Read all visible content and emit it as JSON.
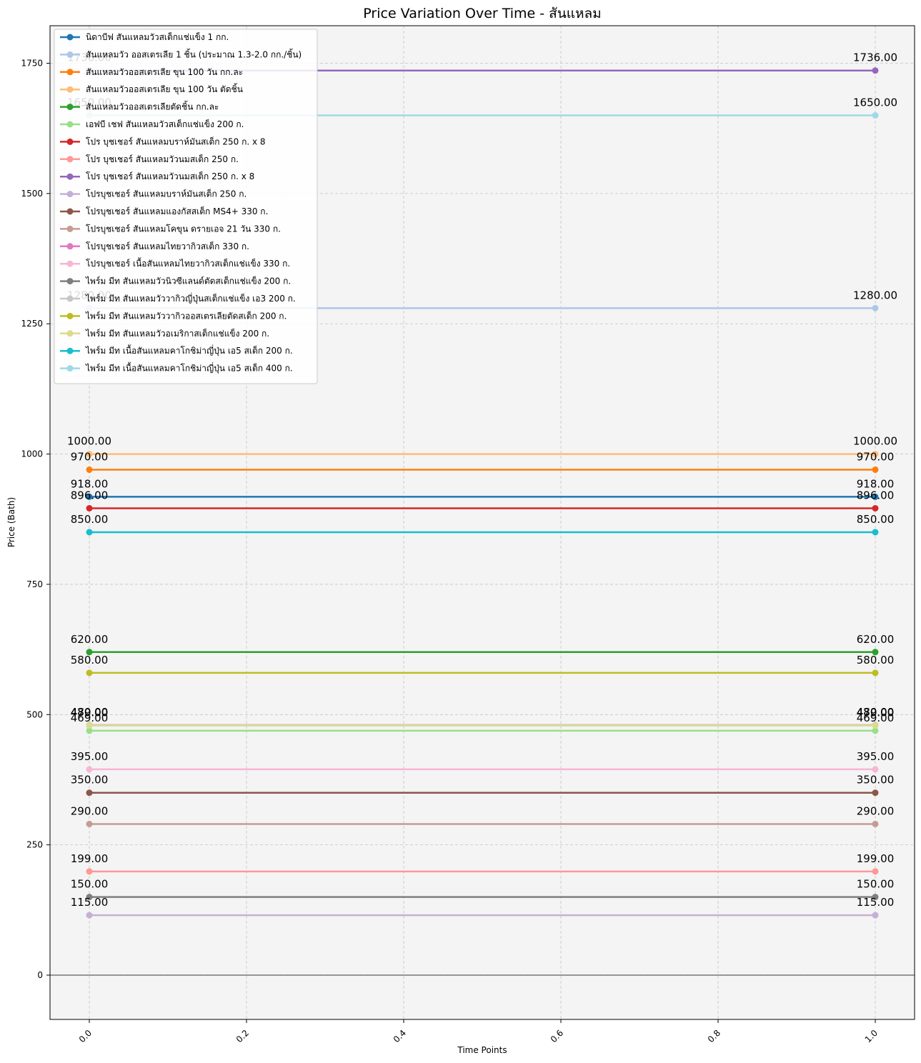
{
  "chart_data": {
    "type": "line",
    "title": "Price Variation Over Time - สันแหลม",
    "xlabel": "Time Points",
    "ylabel": "Price (Bath)",
    "x": [
      0.0,
      1.0
    ],
    "xlim": [
      -0.05,
      1.05
    ],
    "ylim": [
      -85,
      1822
    ],
    "xticks": [
      0.0,
      0.2,
      0.4,
      0.6,
      0.8,
      1.0
    ],
    "xtick_labels": [
      "0.0",
      "0.2",
      "0.4",
      "0.6",
      "0.8",
      "1.0"
    ],
    "yticks": [
      0,
      250,
      500,
      750,
      1000,
      1250,
      1500,
      1750
    ],
    "ytick_labels": [
      "0",
      "250",
      "500",
      "750",
      "1000",
      "1250",
      "1500",
      "1750"
    ],
    "grid": true,
    "legend_position": "top-left",
    "series": [
      {
        "name": "นิดาบีฟ สันแหลมวัวสเต็กแช่แข็ง 1 กก.",
        "color": "#1f77b4",
        "values": [
          918,
          918
        ],
        "labels": [
          "918.00",
          "918.00"
        ]
      },
      {
        "name": "สันแหลมวัว ออสเตรเลีย 1 ชิ้น (ประมาณ 1.3-2.0 กก./ชิ้น)",
        "color": "#aec7e8",
        "values": [
          1280,
          1280
        ],
        "labels": [
          "1280.00",
          "1280.00"
        ]
      },
      {
        "name": "สันแหลมวัวออสเตรเลีย ขุน 100 วัน กก.ละ",
        "color": "#ff7f0e",
        "values": [
          970,
          970
        ],
        "labels": [
          "970.00",
          "970.00"
        ]
      },
      {
        "name": "สันแหลมวัวออสเตรเลีย ขุน 100 วัน ตัดชิ้น",
        "color": "#ffbb78",
        "values": [
          1000,
          1000
        ],
        "labels": [
          "1000.00",
          "1000.00"
        ]
      },
      {
        "name": "สันแหลมวัวออสเตรเลียตัดชิ้น กก.ละ",
        "color": "#2ca02c",
        "values": [
          620,
          620
        ],
        "labels": [
          "620.00",
          "620.00"
        ]
      },
      {
        "name": "เอฟบี เชฟ สันแหลมวัวสเต็กแช่แข็ง 200 ก.",
        "color": "#98df8a",
        "values": [
          469,
          469
        ],
        "labels": [
          "469.00",
          "469.00"
        ]
      },
      {
        "name": "โปร บุชเชอร์ สันแหลมบราห์มันสเต็ก 250 ก. x 8",
        "color": "#d62728",
        "values": [
          896,
          896
        ],
        "labels": [
          "896.00",
          "896.00"
        ]
      },
      {
        "name": "โปร บุชเชอร์ สันแหลมวัวนมสเต็ก 250 ก.",
        "color": "#ff9896",
        "values": [
          199,
          199
        ],
        "labels": [
          "199.00",
          "199.00"
        ]
      },
      {
        "name": "โปร บุชเชอร์ สันแหลมวัวนมสเต็ก 250 ก. x 8",
        "color": "#9467bd",
        "values": [
          1736,
          1736
        ],
        "labels": [
          "1736.00",
          "1736.00"
        ]
      },
      {
        "name": "โปรบุชเชอร์ สันแหลมบราห์มันสเต็ก 250 ก.",
        "color": "#c5b0d5",
        "values": [
          115,
          115
        ],
        "labels": [
          "115.00",
          "115.00"
        ]
      },
      {
        "name": "โปรบุชเชอร์ สันแหลมแองกัสสเต็ก MS4+ 330 ก.",
        "color": "#8c564b",
        "values": [
          350,
          350
        ],
        "labels": [
          "350.00",
          "350.00"
        ]
      },
      {
        "name": "โปรบุชเชอร์ สันแหลมโคขุน ดรายเอจ 21 วัน 330 ก.",
        "color": "#c49c94",
        "values": [
          290,
          290
        ],
        "labels": [
          "290.00",
          "290.00"
        ]
      },
      {
        "name": "โปรบุชเชอร์ สันแหลมไทยวากิวสเต็ก 330 ก.",
        "color": "#e377c2",
        "values": [
          480,
          480
        ],
        "labels": [
          "480.00",
          "480.00"
        ]
      },
      {
        "name": "โปรบุชเชอร์ เนื้อสันแหลมไทยวากิวสเต็กแช่แข็ง 330 ก.",
        "color": "#f7b6d2",
        "values": [
          395,
          395
        ],
        "labels": [
          "395.00",
          "395.00"
        ]
      },
      {
        "name": "ไพร์ม มีท สันแหลมวัวนิวซีแลนด์ตัดสเต็กแช่แข็ง 200 ก.",
        "color": "#7f7f7f",
        "values": [
          150,
          150
        ],
        "labels": [
          "150.00",
          "150.00"
        ]
      },
      {
        "name": "ไพร์ม มีท สันแหลมวัววากิวญี่ปุ่นสเต็กแช่แข็ง เอ3 200 ก.",
        "color": "#c7c7c7",
        "values": [
          480,
          480
        ],
        "labels": [
          "480.00",
          "480.00"
        ]
      },
      {
        "name": "ไพร์ม มีท สันแหลมวัววากิวออสเตรเลียตัดสเต็ก 200 ก.",
        "color": "#bcbd22",
        "values": [
          580,
          580
        ],
        "labels": [
          "580.00",
          "580.00"
        ]
      },
      {
        "name": "ไพร์ม มีท สันแหลมวัวอเมริกาสเต็กแช่แข็ง 200 ก.",
        "color": "#dbdb8d",
        "values": [
          479,
          479
        ],
        "labels": [
          "479.00",
          "479.00"
        ]
      },
      {
        "name": "ไพร์ม มีท เนื้อสันแหลมคาโกชิม่าญี่ปุ่น เอ5 สเต็ก 200 ก.",
        "color": "#17becf",
        "values": [
          850,
          850
        ],
        "labels": [
          "850.00",
          "850.00"
        ]
      },
      {
        "name": "ไพร์ม มีท เนื้อสันแหลมคาโกชิม่าญี่ปุ่น เอ5 สเต็ก 400 ก.",
        "color": "#9edae5",
        "values": [
          1650,
          1650
        ],
        "labels": [
          "1650.00",
          "1650.00"
        ]
      }
    ]
  }
}
